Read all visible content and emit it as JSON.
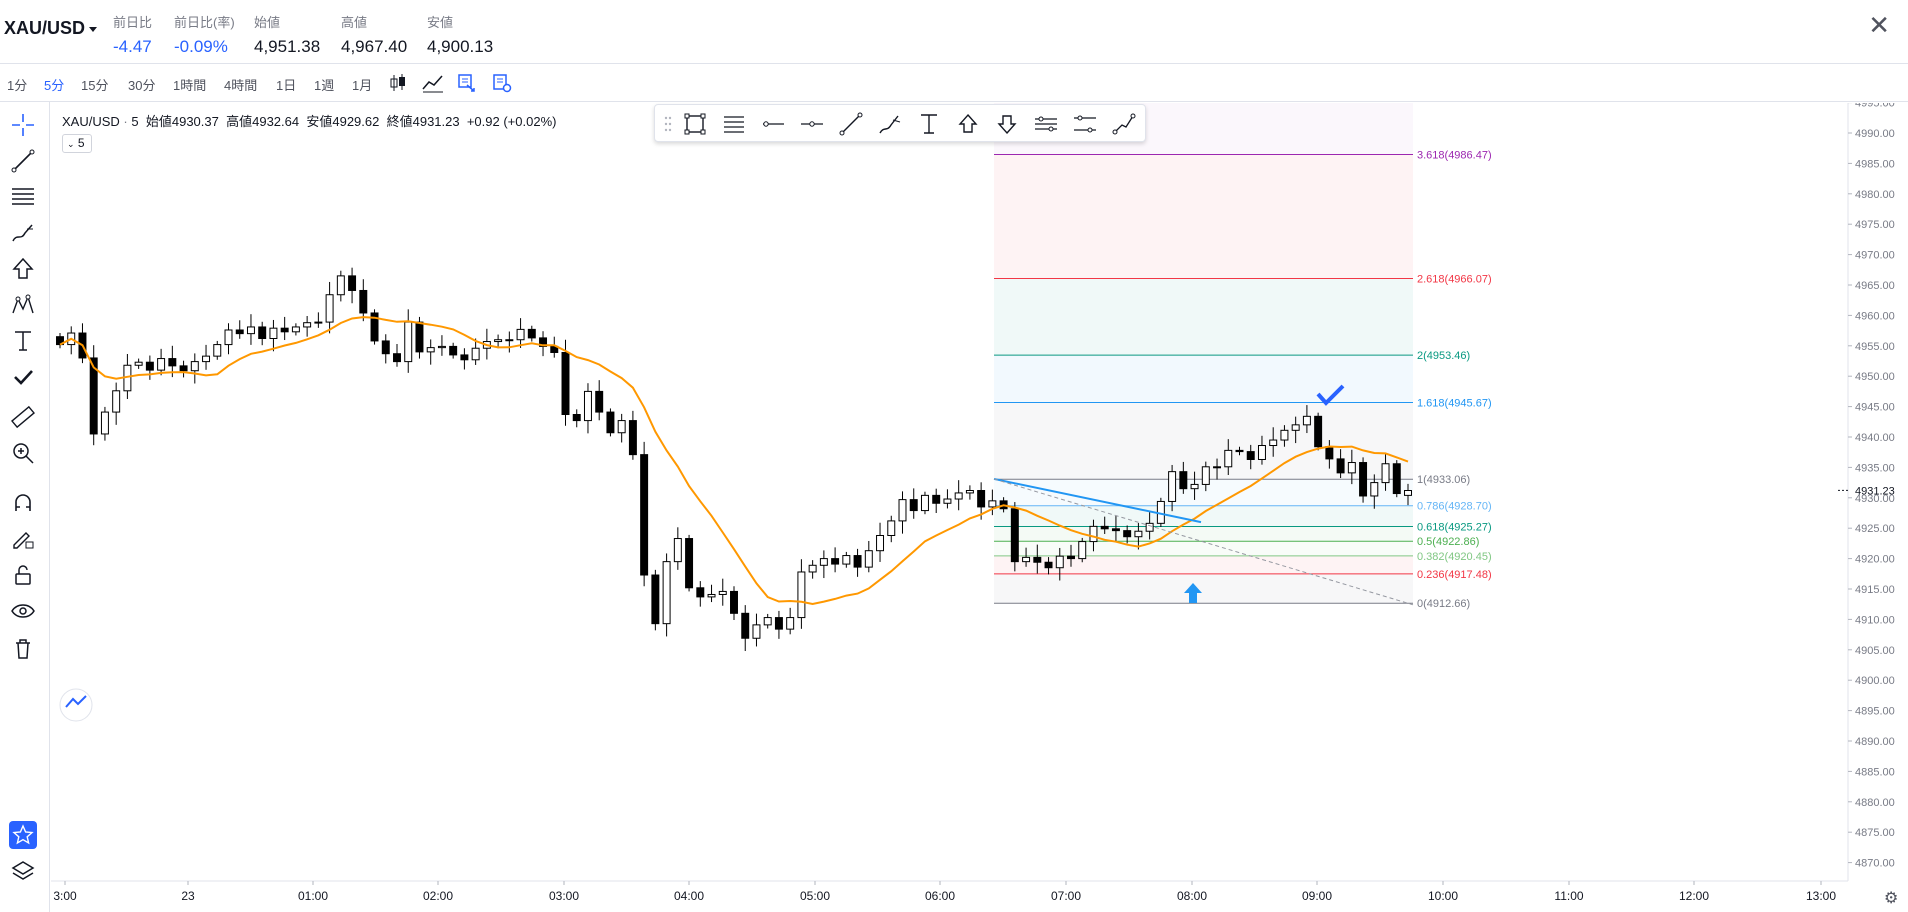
{
  "header": {
    "symbol": "XAU/USD",
    "stats": [
      {
        "label": "前日比",
        "value": "-4.47",
        "blue": true
      },
      {
        "label": "前日比(率)",
        "value": "-0.09%",
        "blue": true
      },
      {
        "label": "始値",
        "value": "4,951.38",
        "blue": false
      },
      {
        "label": "高値",
        "value": "4,967.40",
        "blue": false
      },
      {
        "label": "安値",
        "value": "4,900.13",
        "blue": false
      }
    ]
  },
  "intervals": [
    "1分",
    "5分",
    "15分",
    "30分",
    "1時間",
    "4時間",
    "1日",
    "1週",
    "1月"
  ],
  "active_interval": "5分",
  "legend": {
    "symbol": "XAU/USD",
    "interval": "5",
    "open_label": "始値",
    "open": "4930.37",
    "high_label": "高値",
    "high": "4932.64",
    "low_label": "安値",
    "low": "4929.62",
    "close_label": "終値",
    "close": "4931.23",
    "change": "+0.92 (+0.02%)",
    "interval_badge": "5"
  },
  "price_axis": {
    "labels": [
      "4995.00",
      "4990.00",
      "4985.00",
      "4980.00",
      "4975.00",
      "4970.00",
      "4965.00",
      "4960.00",
      "4955.00",
      "4950.00",
      "4945.00",
      "4940.00",
      "4935.00",
      "4930.00",
      "4925.00",
      "4920.00",
      "4915.00",
      "4910.00",
      "4905.00",
      "4900.00",
      "4895.00",
      "4890.00",
      "4885.00",
      "4880.00",
      "4875.00",
      "4870.00"
    ],
    "current_price": "4931.23"
  },
  "time_axis": [
    "3:00",
    "23",
    "01:00",
    "02:00",
    "03:00",
    "04:00",
    "05:00",
    "06:00",
    "07:00",
    "08:00",
    "09:00",
    "10:00",
    "11:00",
    "12:00",
    "13:00"
  ],
  "fib_levels": [
    {
      "label": "3.618(4986.47)",
      "price": 4986.47,
      "color": "#9c27b0"
    },
    {
      "label": "2.618(4966.07)",
      "price": 4966.07,
      "color": "#f23645"
    },
    {
      "label": "2(4953.46)",
      "price": 4953.46,
      "color": "#089981"
    },
    {
      "label": "1.618(4945.67)",
      "price": 4945.67,
      "color": "#2196f3"
    },
    {
      "label": "1(4933.06)",
      "price": 4933.06,
      "color": "#787b86"
    },
    {
      "label": "0.786(4928.70)",
      "price": 4928.7,
      "color": "#64b5f6"
    },
    {
      "label": "0.618(4925.27)",
      "price": 4925.27,
      "color": "#089981"
    },
    {
      "label": "0.5(4922.86)",
      "price": 4922.86,
      "color": "#4caf50"
    },
    {
      "label": "0.382(4920.45)",
      "price": 4920.45,
      "color": "#81c784"
    },
    {
      "label": "0.236(4917.48)",
      "price": 4917.48,
      "color": "#f23645"
    },
    {
      "label": "0(4912.66)",
      "price": 4912.66,
      "color": "#787b86"
    }
  ],
  "colors": {
    "accent": "#2962ff",
    "ma_line": "#ff9800",
    "trend_line": "#2196f3",
    "candle": "#000000"
  }
}
